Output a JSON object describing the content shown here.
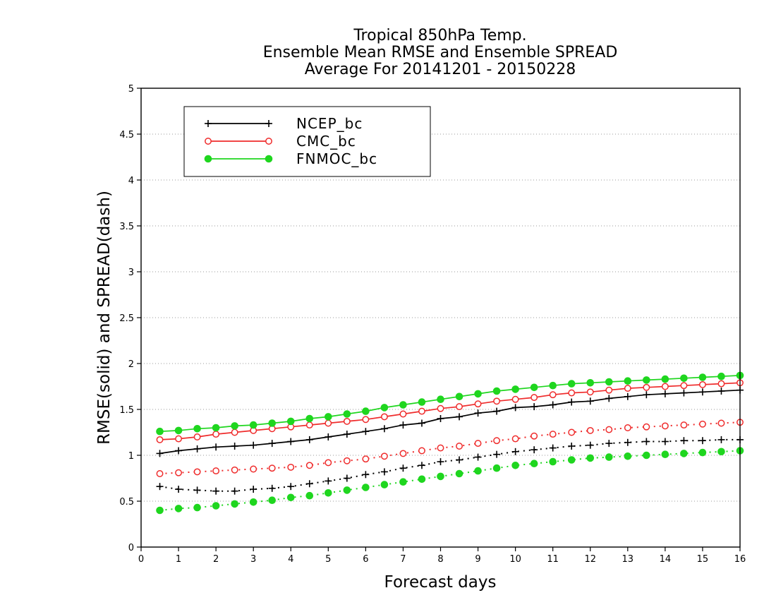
{
  "chart_data": {
    "type": "line",
    "title": [
      "Tropical 850hPa Temp.",
      "Ensemble Mean RMSE and Ensemble SPREAD",
      "Average For 20141201 - 20150228"
    ],
    "xlabel": "Forecast days",
    "ylabel": "RMSE(solid) and SPREAD(dash)",
    "xlim": [
      0,
      16
    ],
    "ylim": [
      0,
      5
    ],
    "xticks": [
      0,
      1,
      2,
      3,
      4,
      5,
      6,
      7,
      8,
      9,
      10,
      11,
      12,
      13,
      14,
      15,
      16
    ],
    "xtick_labels": [
      "0",
      "1",
      "2",
      "3",
      "4",
      "5",
      "6",
      "7",
      "8",
      "9",
      "10",
      "11",
      "12",
      "13",
      "14",
      "15",
      "16"
    ],
    "yticks": [
      0,
      0.5,
      1,
      1.5,
      2,
      2.5,
      3,
      3.5,
      4,
      4.5,
      5
    ],
    "ytick_labels": [
      "0",
      "0.5",
      "1",
      "1.5",
      "2",
      "2.5",
      "3",
      "3.5",
      "4",
      "4.5",
      "5"
    ],
    "grid": "horizontal dotted",
    "legend_placement": "top-left",
    "x": [
      0.5,
      1,
      1.5,
      2,
      2.5,
      3,
      3.5,
      4,
      4.5,
      5,
      5.5,
      6,
      6.5,
      7,
      7.5,
      8,
      8.5,
      9,
      9.5,
      10,
      10.5,
      11,
      11.5,
      12,
      12.5,
      13,
      13.5,
      14,
      14.5,
      15,
      15.5,
      16
    ],
    "series": [
      {
        "name": "NCEP_bc",
        "color": "#000000",
        "marker": "plus",
        "rmse": [
          1.02,
          1.05,
          1.07,
          1.09,
          1.1,
          1.11,
          1.13,
          1.15,
          1.17,
          1.2,
          1.23,
          1.26,
          1.29,
          1.33,
          1.35,
          1.4,
          1.42,
          1.46,
          1.48,
          1.52,
          1.53,
          1.55,
          1.58,
          1.59,
          1.62,
          1.64,
          1.66,
          1.67,
          1.68,
          1.69,
          1.7,
          1.71
        ],
        "spread": [
          0.66,
          0.63,
          0.62,
          0.61,
          0.61,
          0.63,
          0.64,
          0.66,
          0.69,
          0.72,
          0.75,
          0.79,
          0.82,
          0.86,
          0.89,
          0.93,
          0.95,
          0.98,
          1.01,
          1.04,
          1.06,
          1.08,
          1.1,
          1.11,
          1.13,
          1.14,
          1.15,
          1.15,
          1.16,
          1.16,
          1.17,
          1.17
        ]
      },
      {
        "name": "CMC_bc",
        "color": "#ef2c2c",
        "marker": "open-circle",
        "rmse": [
          1.17,
          1.18,
          1.2,
          1.23,
          1.25,
          1.27,
          1.29,
          1.31,
          1.33,
          1.35,
          1.37,
          1.39,
          1.42,
          1.45,
          1.48,
          1.51,
          1.53,
          1.56,
          1.59,
          1.61,
          1.63,
          1.66,
          1.68,
          1.69,
          1.71,
          1.73,
          1.74,
          1.75,
          1.76,
          1.77,
          1.78,
          1.79
        ],
        "spread": [
          0.8,
          0.81,
          0.82,
          0.83,
          0.84,
          0.85,
          0.86,
          0.87,
          0.89,
          0.92,
          0.94,
          0.96,
          0.99,
          1.02,
          1.05,
          1.08,
          1.1,
          1.13,
          1.16,
          1.18,
          1.21,
          1.23,
          1.25,
          1.27,
          1.28,
          1.3,
          1.31,
          1.32,
          1.33,
          1.34,
          1.35,
          1.36
        ]
      },
      {
        "name": "FNMOC_bc",
        "color": "#1fd61f",
        "marker": "filled-circle",
        "rmse": [
          1.26,
          1.27,
          1.29,
          1.3,
          1.32,
          1.33,
          1.35,
          1.37,
          1.4,
          1.42,
          1.45,
          1.48,
          1.52,
          1.55,
          1.58,
          1.61,
          1.64,
          1.67,
          1.7,
          1.72,
          1.74,
          1.76,
          1.78,
          1.79,
          1.8,
          1.81,
          1.82,
          1.83,
          1.84,
          1.85,
          1.86,
          1.87
        ],
        "spread": [
          0.4,
          0.42,
          0.43,
          0.45,
          0.47,
          0.49,
          0.51,
          0.54,
          0.56,
          0.59,
          0.62,
          0.65,
          0.68,
          0.71,
          0.74,
          0.77,
          0.8,
          0.83,
          0.86,
          0.89,
          0.91,
          0.93,
          0.95,
          0.97,
          0.98,
          0.99,
          1.0,
          1.01,
          1.02,
          1.03,
          1.04,
          1.05
        ]
      }
    ]
  }
}
